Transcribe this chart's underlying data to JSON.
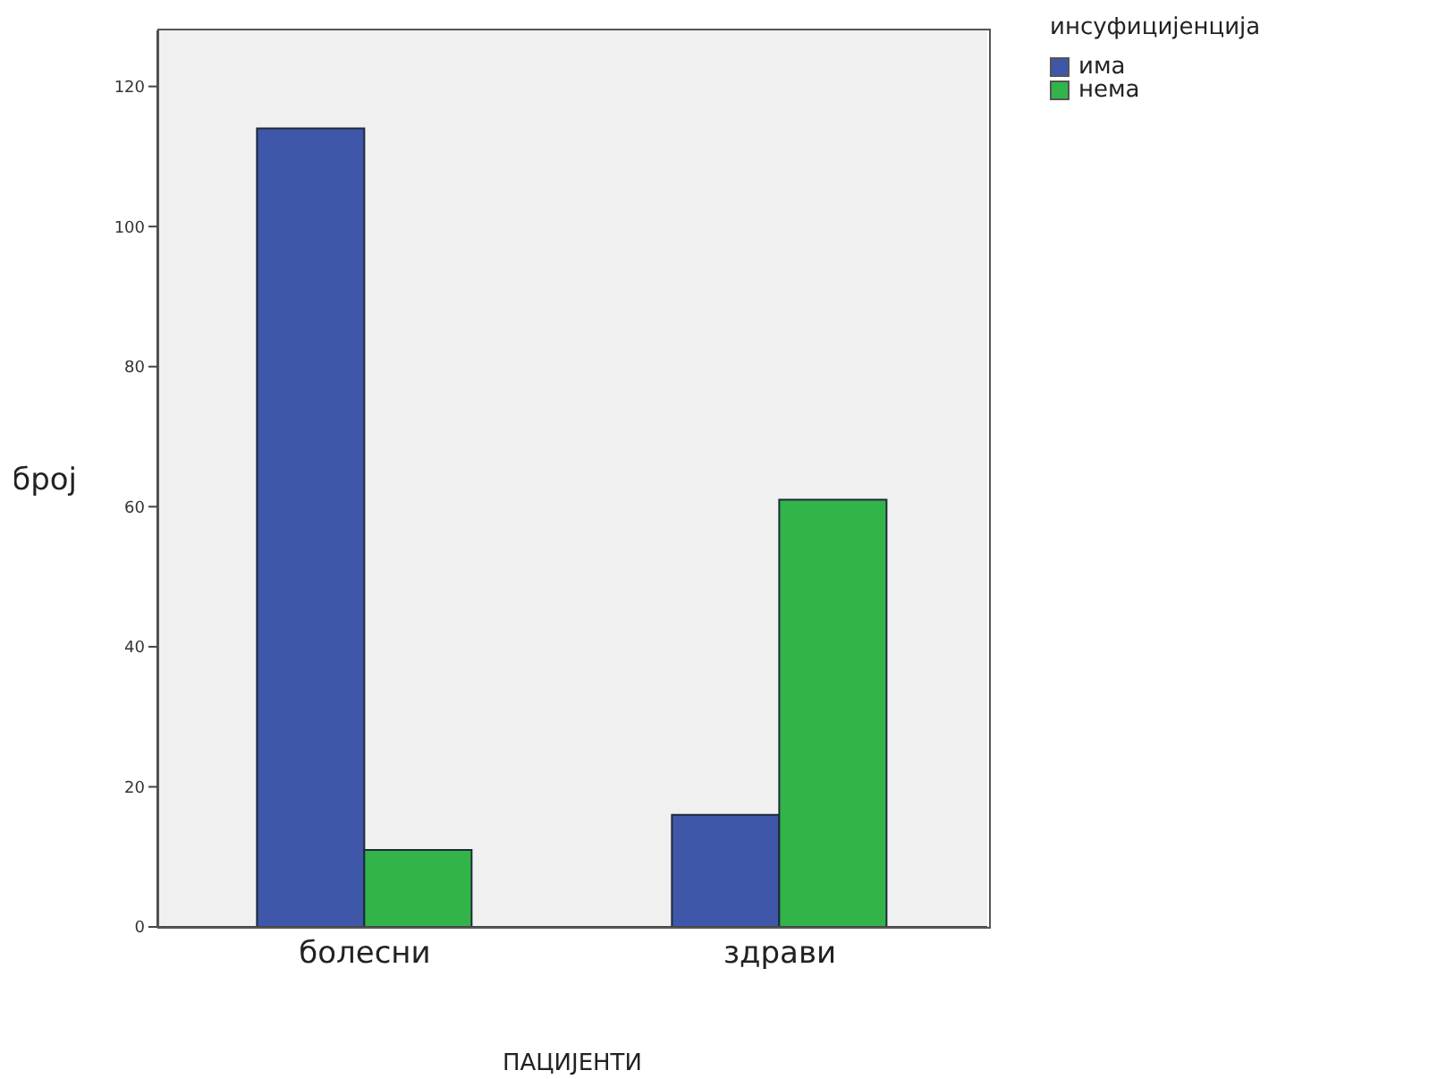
{
  "chart_data": {
    "type": "bar",
    "xlabel": "ПАЦИЈЕНТИ",
    "ylabel": "број",
    "legend_title": "инсуфицијенција",
    "categories": [
      "болесни",
      "здрави"
    ],
    "series": [
      {
        "name": "има",
        "color": "#3f57a8",
        "values": [
          114,
          16
        ]
      },
      {
        "name": "нема",
        "color": "#32b44a",
        "values": [
          11,
          61
        ]
      }
    ],
    "ylim": [
      0,
      128
    ],
    "yticks": [
      0,
      20,
      40,
      60,
      80,
      100,
      120
    ],
    "grid": false,
    "legend": "top right"
  }
}
